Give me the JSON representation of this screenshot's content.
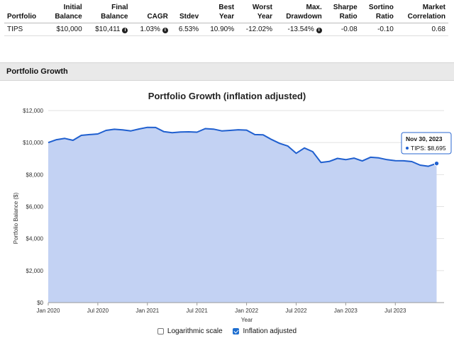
{
  "table": {
    "headers": [
      "Portfolio",
      "Initial\nBalance",
      "Final\nBalance",
      "CAGR",
      "Stdev",
      "Best\nYear",
      "Worst\nYear",
      "Max.\nDrawdown",
      "Sharpe\nRatio",
      "Sortino\nRatio",
      "Market\nCorrelation"
    ],
    "row": {
      "portfolio": "TIPS",
      "initial_balance": "$10,000",
      "final_balance": "$10,411",
      "cagr": "1.03%",
      "stdev": "6.53%",
      "best_year": "10.90%",
      "worst_year": "-12.02%",
      "max_drawdown": "-13.54%",
      "sharpe_ratio": "-0.08",
      "sortino_ratio": "-0.10",
      "market_correlation": "0.68"
    }
  },
  "section": {
    "title": "Portfolio Growth"
  },
  "legend": {
    "log_scale_label": "Logarithmic scale",
    "log_scale_checked": false,
    "inflation_label": "Inflation adjusted",
    "inflation_checked": true
  },
  "chart_data": {
    "type": "area",
    "title": "Portfolio Growth (inflation adjusted)",
    "xlabel": "Year",
    "ylabel": "Portfolio Balance ($)",
    "ylim": [
      0,
      12000
    ],
    "y_ticks": [
      "$0",
      "$2,000",
      "$4,000",
      "$6,000",
      "$8,000",
      "$10,000",
      "$12,000"
    ],
    "x_ticks": [
      "Jan 2020",
      "Jul 2020",
      "Jan 2021",
      "Jul 2021",
      "Jan 2022",
      "Jul 2022",
      "Jan 2023",
      "Jul 2023"
    ],
    "grid": true,
    "series": [
      {
        "name": "TIPS",
        "color": "#1f5fcf",
        "fill": "#c3d2f3",
        "values": [
          10000,
          10180,
          10260,
          10140,
          10450,
          10500,
          10540,
          10760,
          10830,
          10790,
          10730,
          10850,
          10950,
          10940,
          10680,
          10620,
          10660,
          10670,
          10650,
          10870,
          10840,
          10730,
          10760,
          10800,
          10780,
          10500,
          10480,
          10200,
          9950,
          9780,
          9330,
          9660,
          9430,
          8760,
          8820,
          9010,
          8930,
          9030,
          8850,
          9080,
          9040,
          8930,
          8870,
          8860,
          8810,
          8590,
          8520,
          8695
        ]
      }
    ],
    "x_start": "Jan 2020",
    "x_end": "Nov 2023",
    "tooltip": {
      "date": "Nov 30, 2023",
      "label": "TIPS: $8,695"
    }
  }
}
